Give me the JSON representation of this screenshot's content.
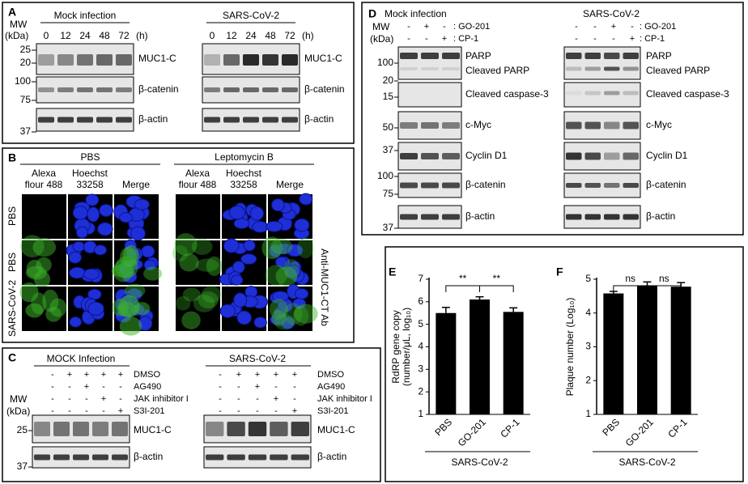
{
  "panel_a": {
    "label": "A",
    "mw": "MW",
    "kda": "(kDa)",
    "markers": [
      "25",
      "20",
      "100",
      "75",
      "37"
    ],
    "blots": [
      {
        "title": "Mock infection",
        "times": [
          "0",
          "12",
          "24",
          "48",
          "72"
        ],
        "unit": "(h)",
        "proteins": [
          "MUC1-C",
          "β-catenin",
          "β-actin"
        ]
      },
      {
        "title": "SARS-CoV-2",
        "times": [
          "0",
          "12",
          "24",
          "48",
          "72"
        ],
        "unit": "(h)",
        "proteins": [
          "MUC1-C",
          "β-catenin",
          "β-actin"
        ]
      }
    ]
  },
  "panel_b": {
    "label": "B",
    "groups": [
      {
        "title": "PBS",
        "headers": [
          [
            "Alexa",
            "flour 488"
          ],
          [
            "Hoechst",
            "33258"
          ],
          [
            "Merge"
          ]
        ]
      },
      {
        "title": "Leptomycin B",
        "headers": [
          [
            "Alexa",
            "flour 488"
          ],
          [
            "Hoechst",
            "33258"
          ],
          [
            "Merge"
          ]
        ]
      }
    ],
    "rows": [
      "PBS",
      "PBS",
      "SARS-CoV-2"
    ],
    "side_label": "Anti-MUC1-CT Ab"
  },
  "panel_c": {
    "label": "C",
    "mw": "MW",
    "kda": "(kDa)",
    "markers": [
      "25",
      "37"
    ],
    "blots": [
      {
        "title": "MOCK Infection",
        "treatments": [
          {
            "name": "DMSO",
            "signs": [
              "-",
              "+",
              "+",
              "+",
              "+"
            ]
          },
          {
            "name": "AG490",
            "signs": [
              "-",
              "-",
              "+",
              "-",
              "-"
            ]
          },
          {
            "name": "JAK inhibitor I",
            "signs": [
              "-",
              "-",
              "-",
              "+",
              "-"
            ]
          },
          {
            "name": "S3I-201",
            "signs": [
              "-",
              "-",
              "-",
              "-",
              "+"
            ]
          }
        ],
        "proteins": [
          "MUC1-C",
          "β-actin"
        ]
      },
      {
        "title": "SARS-CoV-2",
        "treatments": [
          {
            "name": "DMSO",
            "signs": [
              "-",
              "+",
              "+",
              "+",
              "+"
            ]
          },
          {
            "name": "AG490",
            "signs": [
              "-",
              "-",
              "+",
              "-",
              "-"
            ]
          },
          {
            "name": "JAK inhibitor I",
            "signs": [
              "-",
              "-",
              "-",
              "+",
              "-"
            ]
          },
          {
            "name": "S3I-201",
            "signs": [
              "-",
              "-",
              "-",
              "-",
              "+"
            ]
          }
        ],
        "proteins": [
          "MUC1-C",
          "β-actin"
        ]
      }
    ]
  },
  "panel_d": {
    "label": "D",
    "mw": "MW",
    "kda": "(kDa)",
    "markers": [
      "100",
      "20",
      "15",
      "50",
      "37",
      "100",
      "75",
      "37"
    ],
    "blots": [
      {
        "title": "Mock infection",
        "treatments": [
          {
            "name": ": GO-201",
            "signs": [
              "-",
              "+",
              "-"
            ]
          },
          {
            "name": ": CP-1",
            "signs": [
              "-",
              "-",
              "+"
            ]
          }
        ],
        "proteins": [
          "PARP",
          "Cleaved PARP",
          "Cleaved caspase-3",
          "c-Myc",
          "Cyclin D1",
          "β-catenin",
          "β-actin"
        ]
      },
      {
        "title": "SARS-CoV-2",
        "treatments": [
          {
            "name": ": GO-201",
            "signs": [
              "-",
              "-",
              "+",
              "-"
            ]
          },
          {
            "name": ": CP-1",
            "signs": [
              "-",
              "-",
              "-",
              "+"
            ]
          }
        ],
        "proteins": [
          "PARP",
          "Cleaved PARP",
          "Cleaved caspase-3",
          "c-Myc",
          "Cyclin D1",
          "β-catenin",
          "β-actin"
        ]
      }
    ]
  },
  "chart_data": [
    {
      "type": "bar",
      "label": "E",
      "ylabel": [
        "RdRP gene copy",
        "(number/μL, log₁₀)"
      ],
      "categories": [
        "PBS",
        "GO-201",
        "CP-1"
      ],
      "values": [
        5.5,
        6.1,
        5.55
      ],
      "errors": [
        0.25,
        0.12,
        0.18
      ],
      "color": "#000000",
      "ylim": [
        1,
        7
      ],
      "yticks": [
        1,
        2,
        3,
        4,
        5,
        6,
        7
      ],
      "xlabel": "SARS-CoV-2",
      "annotations": [
        "**",
        "**"
      ]
    },
    {
      "type": "bar",
      "label": "F",
      "ylabel": [
        "Plaque number (Log₁₀)"
      ],
      "categories": [
        "PBS",
        "GO-201",
        "CP-1"
      ],
      "values": [
        4.58,
        4.82,
        4.78
      ],
      "errors": [
        0.06,
        0.1,
        0.12
      ],
      "color": "#000000",
      "ylim": [
        1,
        5
      ],
      "yticks": [
        1,
        2,
        3,
        4,
        5
      ],
      "xlabel": "SARS-CoV-2",
      "annotations": [
        "ns",
        "ns"
      ]
    }
  ]
}
